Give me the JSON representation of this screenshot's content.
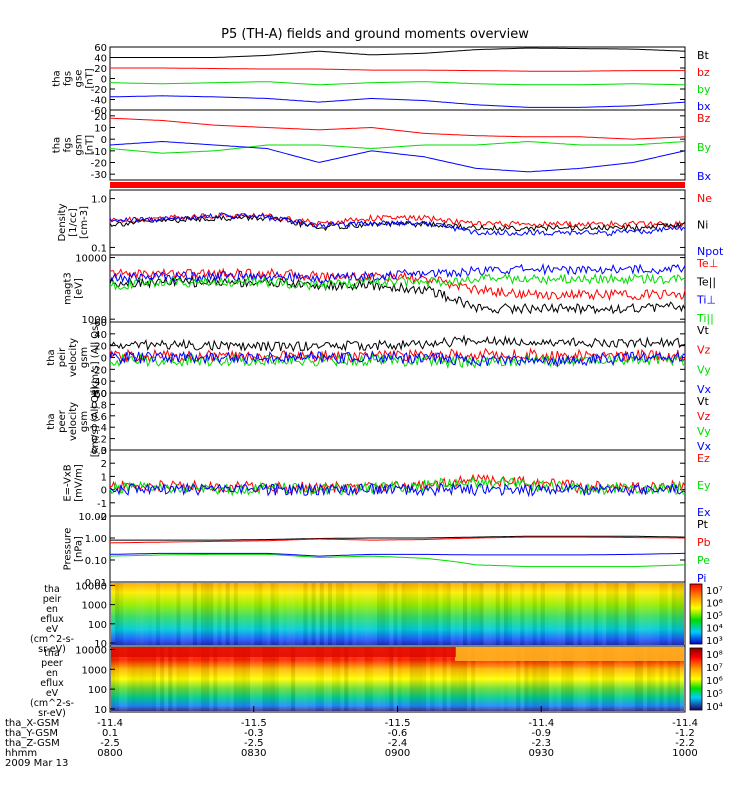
{
  "title": "P5 (TH-A) fields and ground moments overview",
  "colors": {
    "black": "#000000",
    "red": "#ff0000",
    "green": "#00dd00",
    "blue": "#0000ff"
  },
  "chart_data": [
    {
      "type": "line",
      "panel": "fgs_gse",
      "ylabel": [
        "tha",
        "fgs",
        "gse",
        "[nT]"
      ],
      "yticks": [
        "60",
        "40",
        "20",
        "0",
        "-20",
        "-40",
        "-60"
      ],
      "ylim": [
        -60,
        60
      ],
      "legend": [
        {
          "name": "Bt",
          "color": "black"
        },
        {
          "name": "bz",
          "color": "red"
        },
        {
          "name": "by",
          "color": "green"
        },
        {
          "name": "bx",
          "color": "blue"
        }
      ],
      "series": [
        {
          "name": "Bt",
          "color": "black",
          "values": [
            40,
            40,
            40,
            44,
            52,
            45,
            48,
            55,
            58,
            57,
            56,
            52
          ]
        },
        {
          "name": "bz",
          "color": "red",
          "values": [
            20,
            20,
            19,
            18,
            18,
            16,
            16,
            15,
            14,
            14,
            15,
            15
          ]
        },
        {
          "name": "by",
          "color": "green",
          "values": [
            -8,
            -10,
            -8,
            -6,
            -12,
            -8,
            -6,
            -10,
            -12,
            -12,
            -10,
            -12
          ]
        },
        {
          "name": "bx",
          "color": "blue",
          "values": [
            -35,
            -33,
            -35,
            -38,
            -45,
            -38,
            -42,
            -50,
            -55,
            -55,
            -52,
            -45
          ]
        }
      ]
    },
    {
      "type": "line",
      "panel": "fgs_gsm",
      "ylabel": [
        "tha",
        "fgs",
        "gsm",
        "[nT]"
      ],
      "yticks": [
        "20",
        "10",
        "0",
        "-10",
        "-20",
        "-30"
      ],
      "ylim": [
        -35,
        25
      ],
      "legend": [
        {
          "name": "Bz",
          "color": "red"
        },
        {
          "name": "By",
          "color": "green"
        },
        {
          "name": "Bx",
          "color": "blue"
        }
      ],
      "series": [
        {
          "name": "Bz",
          "color": "red",
          "values": [
            18,
            16,
            12,
            10,
            8,
            10,
            5,
            3,
            2,
            2,
            0,
            2
          ]
        },
        {
          "name": "By",
          "color": "green",
          "values": [
            -8,
            -12,
            -10,
            -5,
            -5,
            -8,
            -5,
            -5,
            -2,
            -5,
            -5,
            -2
          ]
        },
        {
          "name": "Bx",
          "color": "blue",
          "values": [
            -5,
            -2,
            -5,
            -8,
            -20,
            -10,
            -15,
            -25,
            -28,
            -25,
            -20,
            -10
          ]
        }
      ]
    },
    {
      "type": "line",
      "panel": "density",
      "ylabel": [
        "Density",
        "[1/cc]",
        "[cm-3]"
      ],
      "yticks": [
        "1.0",
        "0.1"
      ],
      "yscale": "log",
      "ylim": [
        0.07,
        1.5
      ],
      "legend": [
        {
          "name": "Ne",
          "color": "red"
        },
        {
          "name": "Ni",
          "color": "black"
        },
        {
          "name": "Npot",
          "color": "blue"
        }
      ],
      "series": [
        {
          "name": "Ne",
          "color": "red",
          "values": [
            0.35,
            0.4,
            0.45,
            0.45,
            0.3,
            0.4,
            0.4,
            0.3,
            0.3,
            0.3,
            0.3,
            0.3
          ]
        },
        {
          "name": "Ni",
          "color": "black",
          "values": [
            0.3,
            0.35,
            0.4,
            0.4,
            0.25,
            0.3,
            0.3,
            0.25,
            0.25,
            0.25,
            0.25,
            0.3
          ]
        },
        {
          "name": "Npot",
          "color": "blue",
          "values": [
            0.35,
            0.38,
            0.45,
            0.42,
            0.28,
            0.32,
            0.32,
            0.2,
            0.2,
            0.2,
            0.2,
            0.25
          ]
        }
      ]
    },
    {
      "type": "line",
      "panel": "temperature",
      "ylabel": [
        "magt3",
        "[eV]"
      ],
      "yticks": [
        "10000",
        "1000"
      ],
      "yscale": "log",
      "ylim": [
        900,
        11000
      ],
      "legend": [
        {
          "name": "Te⊥",
          "color": "red"
        },
        {
          "name": "Te||",
          "color": "black"
        },
        {
          "name": "Ti⊥",
          "color": "blue"
        },
        {
          "name": "Ti||",
          "color": "green"
        }
      ],
      "series": [
        {
          "name": "Te⊥",
          "color": "red",
          "values": [
            5500,
            5500,
            5500,
            5500,
            5000,
            5000,
            4500,
            3000,
            2500,
            2500,
            2500,
            2500
          ]
        },
        {
          "name": "Te||",
          "color": "black",
          "values": [
            4000,
            4000,
            4000,
            4000,
            3500,
            3500,
            3000,
            1500,
            1500,
            1500,
            1500,
            1600
          ]
        },
        {
          "name": "Ti⊥",
          "color": "blue",
          "values": [
            4500,
            5000,
            5000,
            5000,
            4500,
            5000,
            5500,
            6000,
            6500,
            6500,
            6500,
            6500
          ]
        },
        {
          "name": "Ti||",
          "color": "green",
          "values": [
            3500,
            4000,
            4000,
            4000,
            3500,
            4000,
            4000,
            4500,
            4500,
            4500,
            4500,
            4500
          ]
        }
      ]
    },
    {
      "type": "line",
      "panel": "peir_velocity",
      "ylabel": [
        "tha",
        "peir",
        "velocity",
        "gsm",
        "[km/s] (All Qs)"
      ],
      "yticks": [
        "60",
        "40",
        "20",
        "0",
        "-20",
        "-40",
        "-60"
      ],
      "ylim": [
        -60,
        60
      ],
      "legend": [
        {
          "name": "Vt",
          "color": "black"
        },
        {
          "name": "Vz",
          "color": "red"
        },
        {
          "name": "Vy",
          "color": "green"
        },
        {
          "name": "Vx",
          "color": "blue"
        }
      ],
      "series": [
        {
          "name": "Vt",
          "color": "black",
          "values": [
            20,
            22,
            20,
            18,
            20,
            20,
            22,
            30,
            28,
            25,
            25,
            25
          ]
        },
        {
          "name": "Vz",
          "color": "red",
          "values": [
            2,
            3,
            2,
            2,
            3,
            2,
            3,
            5,
            5,
            3,
            3,
            3
          ]
        },
        {
          "name": "Vy",
          "color": "green",
          "values": [
            -5,
            -5,
            -4,
            -4,
            -5,
            -4,
            -5,
            -8,
            -5,
            -5,
            -5,
            -5
          ]
        },
        {
          "name": "Vx",
          "color": "blue",
          "values": [
            0,
            0,
            0,
            0,
            0,
            0,
            0,
            -5,
            -5,
            -5,
            0,
            0
          ]
        }
      ]
    },
    {
      "type": "line",
      "panel": "peer_velocity",
      "ylabel": [
        "tha",
        "peer",
        "velocity",
        "gsm",
        "[km/s] (All Qs)"
      ],
      "yticks": [
        "1.0",
        "0.8",
        "0.6",
        "0.4",
        "0.2",
        "0.0"
      ],
      "ylim": [
        0,
        1
      ],
      "legend": [
        {
          "name": "Vt",
          "color": "black"
        },
        {
          "name": "Vz",
          "color": "red"
        },
        {
          "name": "Vy",
          "color": "green"
        },
        {
          "name": "Vx",
          "color": "blue"
        }
      ],
      "series": []
    },
    {
      "type": "line",
      "panel": "efield",
      "ylabel": [
        "E=-VxB",
        "[mV/m]"
      ],
      "yticks": [
        "3",
        "2",
        "1",
        "0",
        "-1",
        "-2"
      ],
      "ylim": [
        -2,
        3
      ],
      "legend": [
        {
          "name": "Ez",
          "color": "red"
        },
        {
          "name": "Ey",
          "color": "green"
        },
        {
          "name": "Ex",
          "color": "blue"
        }
      ],
      "series": [
        {
          "name": "Ez",
          "color": "red",
          "values": [
            0.2,
            0.3,
            0.2,
            0.2,
            0.1,
            0.2,
            0.4,
            0.8,
            0.5,
            0.2,
            0.2,
            0.3
          ]
        },
        {
          "name": "Ey",
          "color": "green",
          "values": [
            0.1,
            0.1,
            0.0,
            0.1,
            0.0,
            0.1,
            0.3,
            0.6,
            0.3,
            0.1,
            0.1,
            0.1
          ]
        },
        {
          "name": "Ex",
          "color": "blue",
          "values": [
            0.0,
            0.0,
            0.0,
            0.0,
            0.0,
            0.0,
            0.0,
            0.0,
            0.0,
            0.0,
            0.0,
            0.0
          ]
        }
      ]
    },
    {
      "type": "line",
      "panel": "pressure",
      "ylabel": [
        "Pressure",
        "[nPa]"
      ],
      "yticks": [
        "10.00",
        "1.00",
        "0.10",
        "0.01"
      ],
      "yscale": "log",
      "ylim": [
        0.01,
        10
      ],
      "legend": [
        {
          "name": "Pt",
          "color": "black"
        },
        {
          "name": "Pb",
          "color": "red"
        },
        {
          "name": "Pe",
          "color": "green"
        },
        {
          "name": "Pi",
          "color": "blue"
        }
      ],
      "series": [
        {
          "name": "Pt",
          "color": "black",
          "values": [
            0.8,
            0.8,
            0.8,
            0.85,
            0.95,
            1.0,
            1.0,
            1.1,
            1.2,
            1.2,
            1.2,
            1.1
          ]
        },
        {
          "name": "Pb",
          "color": "red",
          "values": [
            0.6,
            0.65,
            0.7,
            0.75,
            0.9,
            0.8,
            0.85,
            1.0,
            1.1,
            1.1,
            1.05,
            1.0
          ]
        },
        {
          "name": "Pe",
          "color": "green",
          "values": [
            0.15,
            0.17,
            0.18,
            0.18,
            0.13,
            0.15,
            0.12,
            0.06,
            0.05,
            0.05,
            0.05,
            0.06
          ]
        },
        {
          "name": "Pi",
          "color": "blue",
          "values": [
            0.18,
            0.2,
            0.2,
            0.2,
            0.15,
            0.18,
            0.18,
            0.17,
            0.17,
            0.17,
            0.18,
            0.2
          ]
        }
      ]
    },
    {
      "type": "heatmap",
      "panel": "peir_spectrogram",
      "ylabel": [
        "tha",
        "peir",
        "en",
        "eflux",
        "eV",
        "(cm^2-s-",
        "sr-eV)"
      ],
      "yticks": [
        "10000",
        "1000",
        "100",
        "10"
      ],
      "yscale": "log",
      "colorbar_ticks": [
        "10⁷",
        "10⁶",
        "10⁵",
        "10⁴",
        "10³"
      ]
    },
    {
      "type": "heatmap",
      "panel": "peer_spectrogram",
      "ylabel": [
        "tha",
        "peer",
        "en",
        "eflux",
        "eV",
        "(cm^2-s-",
        "sr-eV)"
      ],
      "yticks": [
        "10000",
        "1000",
        "100",
        "10"
      ],
      "yscale": "log",
      "colorbar_ticks": [
        "10⁸",
        "10⁷",
        "10⁶",
        "10⁵",
        "10⁴"
      ]
    }
  ],
  "x_axis": {
    "rows": [
      {
        "label": "tha_X-GSM",
        "values": [
          "-11.4",
          "-11.5",
          "-11.5",
          "-11.4",
          "-11.4"
        ]
      },
      {
        "label": "tha_Y-GSM",
        "values": [
          "0.1",
          "-0.3",
          "-0.6",
          "-0.9",
          "-1.2"
        ]
      },
      {
        "label": "tha_Z-GSM",
        "values": [
          "-2.5",
          "-2.5",
          "-2.4",
          "-2.3",
          "-2.2"
        ]
      },
      {
        "label": "hhmm",
        "values": [
          "0800",
          "0830",
          "0900",
          "0930",
          "1000"
        ]
      }
    ],
    "date": "2009 Mar 13"
  }
}
